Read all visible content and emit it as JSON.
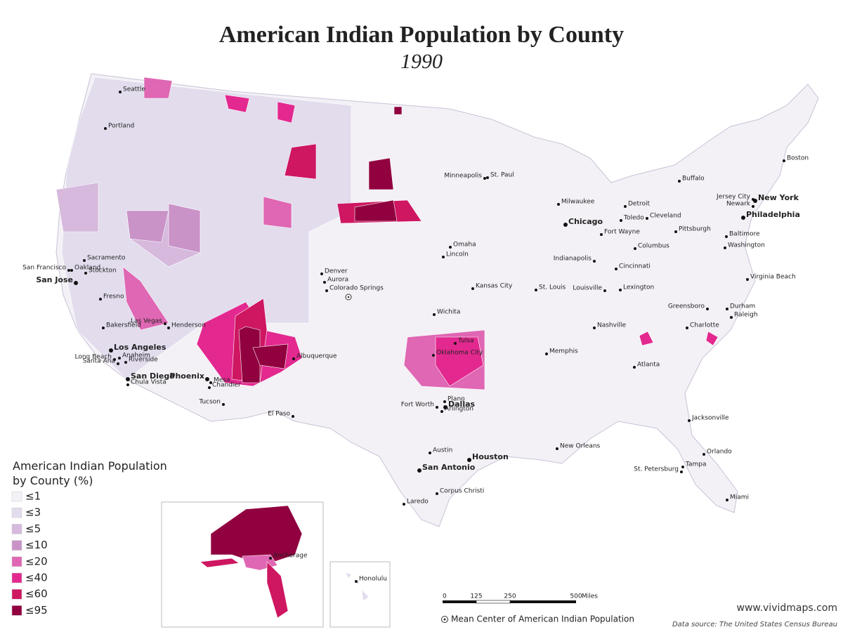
{
  "title": "American Indian Population by County",
  "subtitle": "1990",
  "legend": {
    "title": "American Indian Population by County (%)",
    "items": [
      {
        "label": "≤1",
        "color": "#f3f1f6"
      },
      {
        "label": "≤3",
        "color": "#e2dced"
      },
      {
        "label": "≤5",
        "color": "#d6b9dc"
      },
      {
        "label": "≤10",
        "color": "#c993c8"
      },
      {
        "label": "≤20",
        "color": "#df67b3"
      },
      {
        "label": "≤40",
        "color": "#e3288f"
      },
      {
        "label": "≤60",
        "color": "#ce1661"
      },
      {
        "label": "≤95",
        "color": "#91003f"
      }
    ]
  },
  "cities": [
    "Seattle",
    "Portland",
    "Sacramento",
    "San Francisco",
    "Oakland",
    "Stockton",
    "San Jose",
    "Fresno",
    "Bakersfield",
    "Las Vegas",
    "Henderson",
    "Los Angeles",
    "Long Beach",
    "Anaheim",
    "Santa Ana",
    "Riverside",
    "San Diego",
    "Chula Vista",
    "Phoenix",
    "Mesa",
    "Chandler",
    "Tucson",
    "Denver",
    "Aurora",
    "Colorado Springs",
    "Albuquerque",
    "El Paso",
    "Omaha",
    "Lincoln",
    "Kansas City",
    "Wichita",
    "Oklahoma City",
    "Tulsa",
    "Fort Worth",
    "Dallas",
    "Plano",
    "Arlington",
    "Austin",
    "San Antonio",
    "Houston",
    "Corpus Christi",
    "Laredo",
    "Minneapolis",
    "St. Paul",
    "Milwaukee",
    "Chicago",
    "Detroit",
    "Toledo",
    "Cleveland",
    "Fort Wayne",
    "Pittsburgh",
    "Indianapolis",
    "Columbus",
    "Cincinnati",
    "St. Louis",
    "Louisville",
    "Lexington",
    "Nashville",
    "Memphis",
    "Atlanta",
    "Charlotte",
    "Greensboro",
    "Durham",
    "Raleigh",
    "New Orleans",
    "Jacksonville",
    "Orlando",
    "Tampa",
    "St. Petersburg",
    "Miami",
    "Boston",
    "Buffalo",
    "New York",
    "Jersey City",
    "Newark",
    "Philadelphia",
    "Baltimore",
    "Washington",
    "Virginia Beach",
    "Anchorage",
    "Honolulu"
  ],
  "scale_bar": {
    "ticks": [
      "0",
      "125",
      "250",
      "500"
    ],
    "unit": "Miles"
  },
  "mean_center_note": "Mean Center of American Indian Population",
  "website": "www.vividmaps.com",
  "source": "Data source: The United States Census Bureau"
}
